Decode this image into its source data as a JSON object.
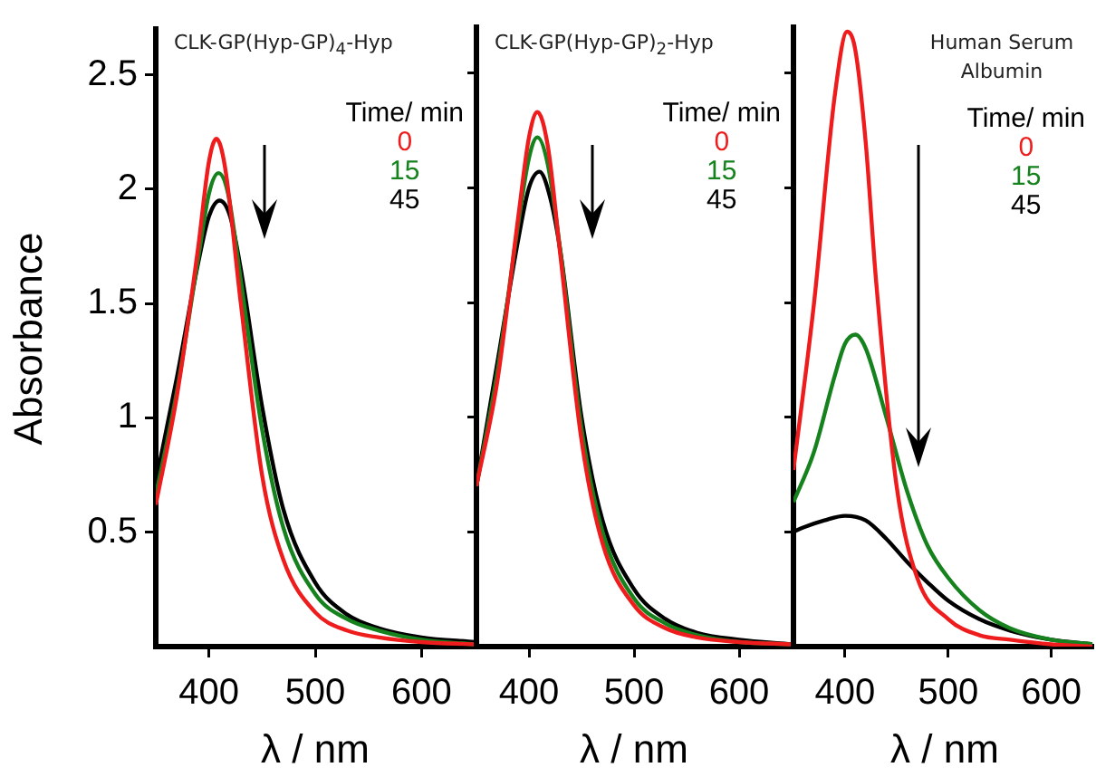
{
  "chart_data": [
    {
      "type": "line",
      "title": "CLK-GP(Hyp-GP)$_{4}$-Hyp",
      "ylabel": "Absorbance",
      "xlabel": "λ / nm",
      "legend_title": "Time/ min",
      "legend": "top right",
      "grid": false,
      "marker": "none",
      "xlim": [
        350,
        650
      ],
      "xticks": [
        400,
        500,
        600
      ],
      "ylim": [
        0,
        2.7
      ],
      "yticks": [
        0.5,
        1,
        1.5,
        2,
        2.5
      ],
      "series": [
        {
          "name": "0",
          "color": "#ee1c1c",
          "x": [
            350,
            370,
            390,
            400,
            407,
            415,
            430,
            450,
            470,
            500,
            530,
            560,
            600,
            650
          ],
          "values": [
            0.62,
            1.1,
            1.75,
            2.12,
            2.22,
            2.1,
            1.5,
            0.75,
            0.38,
            0.15,
            0.07,
            0.04,
            0.02,
            0.01
          ]
        },
        {
          "name": "15",
          "color": "#16821e",
          "x": [
            350,
            370,
            390,
            400,
            409,
            418,
            430,
            450,
            470,
            500,
            530,
            560,
            600,
            650
          ],
          "values": [
            0.66,
            1.12,
            1.7,
            1.98,
            2.07,
            1.98,
            1.6,
            0.95,
            0.52,
            0.23,
            0.12,
            0.07,
            0.03,
            0.01
          ]
        },
        {
          "name": "45",
          "color": "#000000",
          "x": [
            350,
            370,
            390,
            400,
            410,
            420,
            430,
            450,
            470,
            500,
            530,
            560,
            600,
            650
          ],
          "values": [
            0.72,
            1.18,
            1.68,
            1.88,
            1.95,
            1.88,
            1.65,
            1.05,
            0.6,
            0.28,
            0.14,
            0.08,
            0.04,
            0.02
          ]
        }
      ]
    },
    {
      "type": "line",
      "title": "CLK-GP(Hyp-GP)$_{2}$-Hyp",
      "xlabel": "λ / nm",
      "legend_title": "Time/ min",
      "legend": "top right",
      "grid": false,
      "marker": "none",
      "tick_labels": "x",
      "xlim": [
        350,
        650
      ],
      "xticks": [
        400,
        500,
        600
      ],
      "ylim": [
        0,
        2.7
      ],
      "yticks": [
        0.5,
        1,
        1.5,
        2,
        2.5
      ],
      "series": [
        {
          "name": "0",
          "color": "#ee1c1c",
          "x": [
            350,
            370,
            390,
            400,
            408,
            418,
            430,
            450,
            470,
            500,
            530,
            560,
            600,
            650
          ],
          "values": [
            0.7,
            1.16,
            1.88,
            2.22,
            2.33,
            2.18,
            1.7,
            0.9,
            0.45,
            0.18,
            0.08,
            0.04,
            0.02,
            0.01
          ]
        },
        {
          "name": "15",
          "color": "#16821e",
          "x": [
            350,
            370,
            390,
            400,
            408,
            418,
            430,
            450,
            470,
            500,
            530,
            560,
            600,
            650
          ],
          "values": [
            0.7,
            1.2,
            1.85,
            2.13,
            2.22,
            2.1,
            1.72,
            0.95,
            0.5,
            0.21,
            0.1,
            0.05,
            0.02,
            0.01
          ]
        },
        {
          "name": "45",
          "color": "#000000",
          "x": [
            350,
            370,
            390,
            400,
            410,
            420,
            430,
            450,
            470,
            500,
            530,
            560,
            600,
            650
          ],
          "values": [
            0.7,
            1.24,
            1.78,
            2.0,
            2.07,
            1.96,
            1.72,
            1.0,
            0.55,
            0.25,
            0.12,
            0.06,
            0.03,
            0.01
          ]
        }
      ]
    },
    {
      "type": "line",
      "title": "Human Serum Albumin",
      "xlabel": "λ / nm",
      "legend_title": "Time/ min",
      "legend": "top right",
      "grid": false,
      "marker": "none",
      "tick_labels": "x",
      "xlim": [
        350,
        640
      ],
      "xticks": [
        400,
        500,
        600
      ],
      "ylim": [
        0,
        2.7
      ],
      "yticks": [
        0.5,
        1,
        1.5,
        2,
        2.5
      ],
      "series": [
        {
          "name": "0",
          "color": "#ee1c1c",
          "x": [
            350,
            370,
            390,
            402,
            410,
            420,
            430,
            450,
            470,
            500,
            530,
            560,
            600,
            640
          ],
          "values": [
            0.77,
            1.5,
            2.4,
            2.68,
            2.6,
            2.2,
            1.6,
            0.7,
            0.3,
            0.12,
            0.05,
            0.03,
            0.01,
            0
          ]
        },
        {
          "name": "15",
          "color": "#16821e",
          "x": [
            350,
            370,
            390,
            400,
            410,
            420,
            440,
            460,
            480,
            500,
            530,
            560,
            600,
            640
          ],
          "values": [
            0.63,
            0.85,
            1.18,
            1.32,
            1.36,
            1.3,
            1.0,
            0.68,
            0.44,
            0.3,
            0.16,
            0.08,
            0.03,
            0.01
          ]
        },
        {
          "name": "45",
          "color": "#000000",
          "x": [
            350,
            360,
            380,
            400,
            420,
            440,
            460,
            480,
            500,
            530,
            560,
            600,
            640
          ],
          "values": [
            0.5,
            0.52,
            0.55,
            0.57,
            0.55,
            0.47,
            0.37,
            0.28,
            0.2,
            0.12,
            0.07,
            0.03,
            0.01
          ]
        }
      ]
    }
  ]
}
